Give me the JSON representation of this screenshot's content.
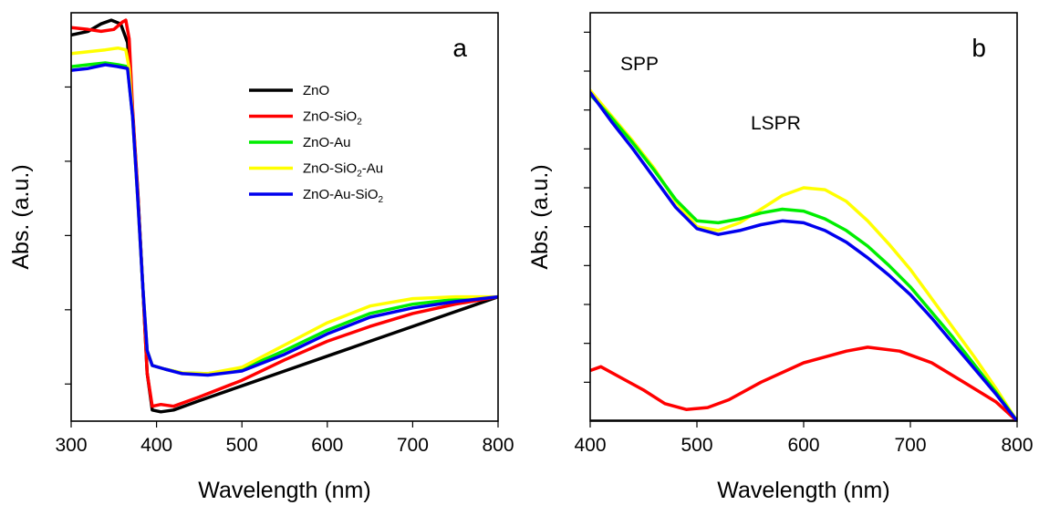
{
  "chart_data": [
    {
      "panel": "a",
      "type": "line",
      "xlabel": "Wavelength (nm)",
      "ylabel": "Abs. (a.u.)",
      "xlim": [
        300,
        800
      ],
      "ylim": [
        0,
        1.1
      ],
      "xticks": [
        300,
        400,
        500,
        600,
        700,
        800
      ],
      "yticks_unlabeled": [
        0.1,
        0.3,
        0.5,
        0.7,
        0.9
      ],
      "grid": false,
      "legend_position": "upper-right",
      "series": [
        {
          "name": "ZnO",
          "legend_main": "ZnO",
          "legend_sub": "",
          "legend_tail": "",
          "color": "#000000",
          "points": [
            [
              300,
              1.04
            ],
            [
              320,
              1.05
            ],
            [
              335,
              1.07
            ],
            [
              347,
              1.08
            ],
            [
              358,
              1.07
            ],
            [
              366,
              1.02
            ],
            [
              372,
              0.83
            ],
            [
              378,
              0.62
            ],
            [
              384,
              0.36
            ],
            [
              389,
              0.13
            ],
            [
              395,
              0.03
            ],
            [
              405,
              0.025
            ],
            [
              420,
              0.03
            ],
            [
              450,
              0.055
            ],
            [
              500,
              0.095
            ],
            [
              550,
              0.135
            ],
            [
              600,
              0.175
            ],
            [
              650,
              0.215
            ],
            [
              700,
              0.255
            ],
            [
              750,
              0.295
            ],
            [
              800,
              0.335
            ]
          ]
        },
        {
          "name": "ZnO-SiO2",
          "legend_main": "ZnO-SiO",
          "legend_sub": "2",
          "legend_tail": "",
          "color": "#ff0000",
          "points": [
            [
              300,
              1.06
            ],
            [
              320,
              1.055
            ],
            [
              335,
              1.05
            ],
            [
              350,
              1.055
            ],
            [
              360,
              1.075
            ],
            [
              364,
              1.08
            ],
            [
              368,
              1.03
            ],
            [
              372,
              0.84
            ],
            [
              378,
              0.62
            ],
            [
              384,
              0.36
            ],
            [
              389,
              0.13
            ],
            [
              395,
              0.04
            ],
            [
              405,
              0.045
            ],
            [
              420,
              0.04
            ],
            [
              450,
              0.065
            ],
            [
              500,
              0.11
            ],
            [
              550,
              0.165
            ],
            [
              600,
              0.215
            ],
            [
              650,
              0.255
            ],
            [
              700,
              0.29
            ],
            [
              750,
              0.315
            ],
            [
              800,
              0.335
            ]
          ]
        },
        {
          "name": "ZnO-Au",
          "legend_main": "ZnO-Au",
          "legend_sub": "",
          "legend_tail": "",
          "color": "#00ee00",
          "points": [
            [
              300,
              0.955
            ],
            [
              320,
              0.96
            ],
            [
              340,
              0.965
            ],
            [
              355,
              0.96
            ],
            [
              366,
              0.955
            ],
            [
              372,
              0.82
            ],
            [
              378,
              0.6
            ],
            [
              384,
              0.36
            ],
            [
              389,
              0.19
            ],
            [
              395,
              0.15
            ],
            [
              410,
              0.14
            ],
            [
              430,
              0.13
            ],
            [
              460,
              0.128
            ],
            [
              500,
              0.14
            ],
            [
              550,
              0.19
            ],
            [
              600,
              0.245
            ],
            [
              650,
              0.29
            ],
            [
              700,
              0.315
            ],
            [
              750,
              0.328
            ],
            [
              800,
              0.335
            ]
          ]
        },
        {
          "name": "ZnO-SiO2-Au",
          "legend_main": "ZnO-SiO",
          "legend_sub": "2",
          "legend_tail": "-Au",
          "color": "#ffff00",
          "points": [
            [
              300,
              0.99
            ],
            [
              320,
              0.995
            ],
            [
              340,
              1.0
            ],
            [
              355,
              1.005
            ],
            [
              364,
              1.0
            ],
            [
              368,
              0.95
            ],
            [
              372,
              0.82
            ],
            [
              378,
              0.6
            ],
            [
              384,
              0.36
            ],
            [
              389,
              0.19
            ],
            [
              395,
              0.15
            ],
            [
              410,
              0.14
            ],
            [
              430,
              0.13
            ],
            [
              460,
              0.128
            ],
            [
              500,
              0.145
            ],
            [
              550,
              0.205
            ],
            [
              600,
              0.265
            ],
            [
              650,
              0.31
            ],
            [
              700,
              0.33
            ],
            [
              750,
              0.335
            ],
            [
              800,
              0.335
            ]
          ]
        },
        {
          "name": "ZnO-Au-SiO2",
          "legend_main": "ZnO-Au-SiO",
          "legend_sub": "2",
          "legend_tail": "",
          "color": "#0000ee",
          "points": [
            [
              300,
              0.945
            ],
            [
              320,
              0.95
            ],
            [
              340,
              0.96
            ],
            [
              355,
              0.955
            ],
            [
              366,
              0.95
            ],
            [
              372,
              0.82
            ],
            [
              378,
              0.6
            ],
            [
              384,
              0.36
            ],
            [
              389,
              0.19
            ],
            [
              395,
              0.15
            ],
            [
              410,
              0.14
            ],
            [
              430,
              0.128
            ],
            [
              460,
              0.124
            ],
            [
              500,
              0.135
            ],
            [
              550,
              0.18
            ],
            [
              600,
              0.235
            ],
            [
              650,
              0.28
            ],
            [
              700,
              0.305
            ],
            [
              750,
              0.322
            ],
            [
              800,
              0.335
            ]
          ]
        }
      ]
    },
    {
      "panel": "b",
      "type": "line",
      "xlabel": "Wavelength (nm)",
      "ylabel": "Abs. (a.u.)",
      "xlim": [
        400,
        800
      ],
      "ylim": [
        0,
        1.05
      ],
      "xticks": [
        400,
        500,
        600,
        700,
        800
      ],
      "yticks_unlabeled": [
        0.1,
        0.2,
        0.3,
        0.4,
        0.5,
        0.6,
        0.7,
        0.8,
        0.9,
        1.0
      ],
      "grid": false,
      "annotations": [
        "SPP",
        "LSPR"
      ],
      "series": [
        {
          "name": "ZnO",
          "color": "#000000",
          "points": [
            [
              400,
              0.0
            ],
            [
              800,
              0.0
            ]
          ]
        },
        {
          "name": "ZnO-SiO2",
          "color": "#ff0000",
          "points": [
            [
              400,
              0.13
            ],
            [
              410,
              0.14
            ],
            [
              430,
              0.11
            ],
            [
              450,
              0.08
            ],
            [
              470,
              0.045
            ],
            [
              490,
              0.03
            ],
            [
              510,
              0.035
            ],
            [
              530,
              0.055
            ],
            [
              560,
              0.1
            ],
            [
              600,
              0.15
            ],
            [
              640,
              0.18
            ],
            [
              660,
              0.19
            ],
            [
              690,
              0.18
            ],
            [
              720,
              0.15
            ],
            [
              750,
              0.1
            ],
            [
              780,
              0.05
            ],
            [
              800,
              0.0
            ]
          ]
        },
        {
          "name": "ZnO-SiO2-Au",
          "color": "#ffff00",
          "points": [
            [
              400,
              0.85
            ],
            [
              420,
              0.785
            ],
            [
              440,
              0.72
            ],
            [
              460,
              0.65
            ],
            [
              480,
              0.565
            ],
            [
              500,
              0.5
            ],
            [
              520,
              0.49
            ],
            [
              540,
              0.51
            ],
            [
              560,
              0.545
            ],
            [
              580,
              0.58
            ],
            [
              600,
              0.6
            ],
            [
              620,
              0.595
            ],
            [
              640,
              0.565
            ],
            [
              660,
              0.515
            ],
            [
              680,
              0.455
            ],
            [
              700,
              0.39
            ],
            [
              720,
              0.315
            ],
            [
              740,
              0.24
            ],
            [
              760,
              0.165
            ],
            [
              780,
              0.085
            ],
            [
              800,
              0.0
            ]
          ]
        },
        {
          "name": "ZnO-Au",
          "color": "#00ee00",
          "points": [
            [
              400,
              0.84
            ],
            [
              420,
              0.78
            ],
            [
              440,
              0.715
            ],
            [
              460,
              0.645
            ],
            [
              480,
              0.57
            ],
            [
              500,
              0.515
            ],
            [
              520,
              0.51
            ],
            [
              540,
              0.52
            ],
            [
              560,
              0.535
            ],
            [
              580,
              0.545
            ],
            [
              600,
              0.54
            ],
            [
              620,
              0.52
            ],
            [
              640,
              0.49
            ],
            [
              660,
              0.45
            ],
            [
              680,
              0.4
            ],
            [
              700,
              0.345
            ],
            [
              720,
              0.28
            ],
            [
              740,
              0.215
            ],
            [
              760,
              0.145
            ],
            [
              780,
              0.075
            ],
            [
              800,
              0.0
            ]
          ]
        },
        {
          "name": "ZnO-Au-SiO2",
          "color": "#0000ee",
          "points": [
            [
              400,
              0.845
            ],
            [
              420,
              0.77
            ],
            [
              440,
              0.7
            ],
            [
              460,
              0.625
            ],
            [
              480,
              0.55
            ],
            [
              500,
              0.495
            ],
            [
              520,
              0.48
            ],
            [
              540,
              0.49
            ],
            [
              560,
              0.505
            ],
            [
              580,
              0.515
            ],
            [
              600,
              0.51
            ],
            [
              620,
              0.49
            ],
            [
              640,
              0.46
            ],
            [
              660,
              0.42
            ],
            [
              680,
              0.375
            ],
            [
              700,
              0.325
            ],
            [
              720,
              0.265
            ],
            [
              740,
              0.2
            ],
            [
              760,
              0.135
            ],
            [
              780,
              0.07
            ],
            [
              800,
              0.0
            ]
          ]
        }
      ]
    }
  ]
}
